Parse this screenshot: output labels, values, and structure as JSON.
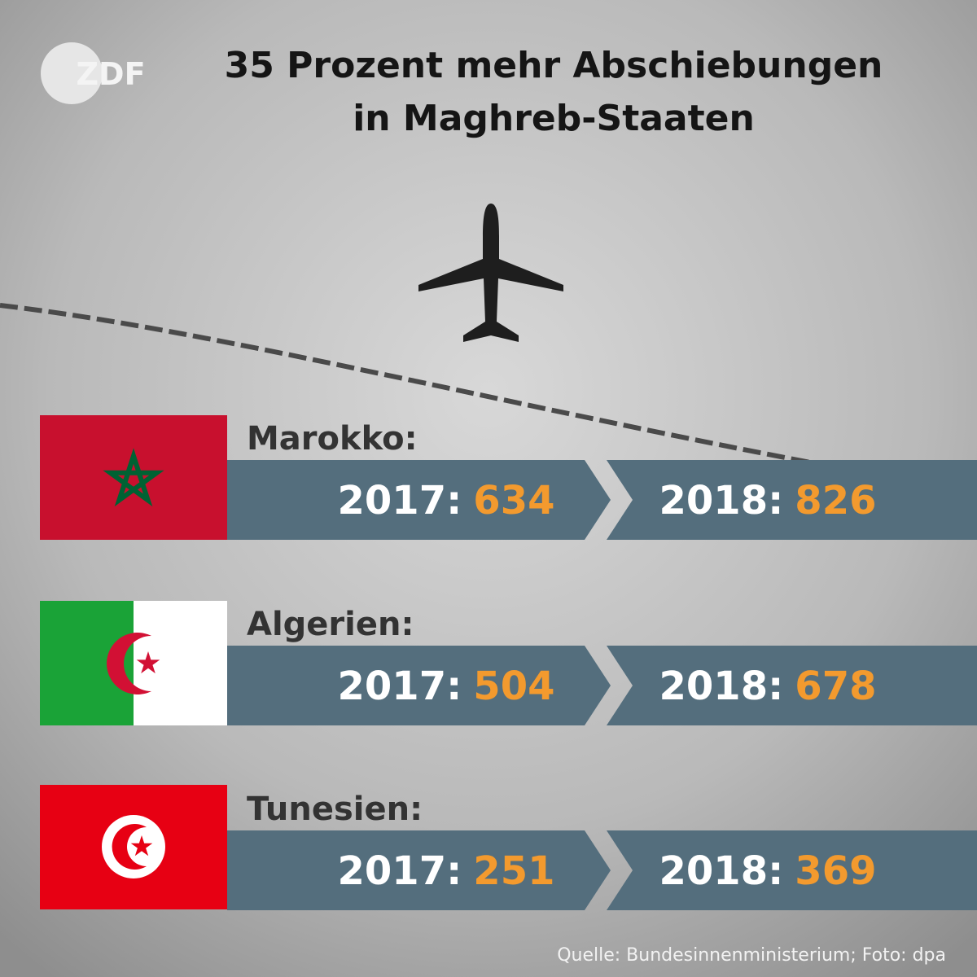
{
  "logo": "ZDF",
  "title": [
    "35 Prozent mehr Abschiebungen",
    "in Maghreb-Staaten"
  ],
  "rows": [
    {
      "country": "Marokko:",
      "entries": [
        {
          "year": "2017:",
          "value": 634
        },
        {
          "year": "2018:",
          "value": 826
        }
      ]
    },
    {
      "country": "Algerien:",
      "entries": [
        {
          "year": "2017:",
          "value": 504
        },
        {
          "year": "2018:",
          "value": 678
        }
      ]
    },
    {
      "country": "Tunesien:",
      "entries": [
        {
          "year": "2017:",
          "value": 251
        },
        {
          "year": "2018:",
          "value": 369
        }
      ]
    }
  ],
  "source": "Quelle: Bundesinnenministerium; Foto: dpa"
}
